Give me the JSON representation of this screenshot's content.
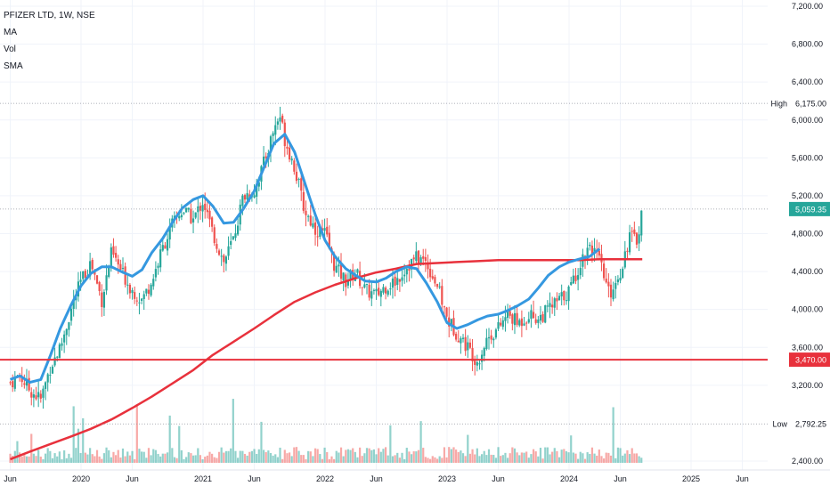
{
  "legend": {
    "title": "PFIZER LTD, 1W, NSE",
    "items": [
      "MA",
      "Vol",
      "SMA"
    ]
  },
  "colors": {
    "up": "#26a69a",
    "down": "#ef5350",
    "ma_line": "#3598e0",
    "sma_line": "#e8313c",
    "support": "#e8313c",
    "last_price_tag": "#26a69a",
    "support_tag": "#e8313c",
    "grid": "#f0f3fa",
    "dotted": "#9598a1"
  },
  "chart_data": {
    "type": "candlestick",
    "title": "PFIZER LTD, 1W, NSE",
    "y_axis": {
      "min": 2400,
      "max": 7200,
      "ticks": [
        {
          "value": 7200,
          "label": "7,200.00"
        },
        {
          "value": 6800,
          "label": "6,800.00"
        },
        {
          "value": 6400,
          "label": "6,400.00"
        },
        {
          "value": 6000,
          "label": "6,000.00"
        },
        {
          "value": 5600,
          "label": "5,600.00"
        },
        {
          "value": 5200,
          "label": "5,200.00"
        },
        {
          "value": 4800,
          "label": "4,800.00"
        },
        {
          "value": 4400,
          "label": "4,400.00"
        },
        {
          "value": 4000,
          "label": "4,000.00"
        },
        {
          "value": 3600,
          "label": "3,600.00"
        },
        {
          "value": 3200,
          "label": "3,200.00"
        },
        {
          "value": 2400,
          "label": "2,400.00"
        }
      ]
    },
    "x_axis": {
      "ticks": [
        {
          "t": 2019.42,
          "label": "Jun"
        },
        {
          "t": 2020.0,
          "label": "2020"
        },
        {
          "t": 2020.42,
          "label": "Jun"
        },
        {
          "t": 2021.0,
          "label": "2021"
        },
        {
          "t": 2021.42,
          "label": "Jun"
        },
        {
          "t": 2022.0,
          "label": "2022"
        },
        {
          "t": 2022.42,
          "label": "Jun"
        },
        {
          "t": 2023.0,
          "label": "2023"
        },
        {
          "t": 2023.42,
          "label": "Jun"
        },
        {
          "t": 2024.0,
          "label": "2024"
        },
        {
          "t": 2024.42,
          "label": "Jun"
        },
        {
          "t": 2025.0,
          "label": "2025"
        },
        {
          "t": 2025.42,
          "label": "Jun"
        }
      ]
    },
    "high": {
      "label": "High",
      "value": 6175,
      "value_label": "6,175.00"
    },
    "low": {
      "label": "Low",
      "value": 2792.25,
      "value_label": "2,792.25"
    },
    "last_price": {
      "value": 5059.35,
      "label": "5,059.35"
    },
    "support": {
      "value": 3470,
      "label": "3,470.00"
    },
    "price_path": [
      [
        2019.42,
        3230
      ],
      [
        2019.5,
        3300
      ],
      [
        2019.58,
        3150
      ],
      [
        2019.67,
        3050
      ],
      [
        2019.75,
        3400
      ],
      [
        2019.83,
        3600
      ],
      [
        2019.92,
        4000
      ],
      [
        2020.0,
        4300
      ],
      [
        2020.08,
        4500
      ],
      [
        2020.17,
        4100
      ],
      [
        2020.25,
        4600
      ],
      [
        2020.33,
        4400
      ],
      [
        2020.42,
        4200
      ],
      [
        2020.5,
        4100
      ],
      [
        2020.58,
        4300
      ],
      [
        2020.67,
        4650
      ],
      [
        2020.75,
        4900
      ],
      [
        2020.83,
        5050
      ],
      [
        2020.92,
        4950
      ],
      [
        2021.0,
        5150
      ],
      [
        2021.08,
        4800
      ],
      [
        2021.17,
        4500
      ],
      [
        2021.25,
        4750
      ],
      [
        2021.33,
        5200
      ],
      [
        2021.42,
        5250
      ],
      [
        2021.5,
        5550
      ],
      [
        2021.58,
        5900
      ],
      [
        2021.63,
        6050
      ],
      [
        2021.67,
        5800
      ],
      [
        2021.75,
        5500
      ],
      [
        2021.83,
        5050
      ],
      [
        2021.92,
        4850
      ],
      [
        2022.0,
        4800
      ],
      [
        2022.08,
        4450
      ],
      [
        2022.17,
        4300
      ],
      [
        2022.25,
        4400
      ],
      [
        2022.33,
        4200
      ],
      [
        2022.42,
        4150
      ],
      [
        2022.5,
        4250
      ],
      [
        2022.58,
        4300
      ],
      [
        2022.67,
        4450
      ],
      [
        2022.75,
        4550
      ],
      [
        2022.83,
        4500
      ],
      [
        2022.92,
        4250
      ],
      [
        2023.0,
        3900
      ],
      [
        2023.08,
        3750
      ],
      [
        2023.17,
        3600
      ],
      [
        2023.25,
        3450
      ],
      [
        2023.33,
        3700
      ],
      [
        2023.42,
        3800
      ],
      [
        2023.5,
        3950
      ],
      [
        2023.58,
        3850
      ],
      [
        2023.67,
        3950
      ],
      [
        2023.75,
        3900
      ],
      [
        2023.83,
        4000
      ],
      [
        2023.92,
        4100
      ],
      [
        2024.0,
        4200
      ],
      [
        2024.08,
        4450
      ],
      [
        2024.17,
        4700
      ],
      [
        2024.25,
        4500
      ],
      [
        2024.33,
        4150
      ],
      [
        2024.42,
        4400
      ],
      [
        2024.5,
        4800
      ],
      [
        2024.55,
        4700
      ],
      [
        2024.6,
        5059.35
      ]
    ],
    "ma_line": [
      [
        2019.42,
        3260
      ],
      [
        2019.5,
        3300
      ],
      [
        2019.58,
        3230
      ],
      [
        2019.67,
        3260
      ],
      [
        2019.75,
        3520
      ],
      [
        2019.83,
        3800
      ],
      [
        2019.92,
        4050
      ],
      [
        2020.0,
        4250
      ],
      [
        2020.08,
        4380
      ],
      [
        2020.17,
        4450
      ],
      [
        2020.25,
        4450
      ],
      [
        2020.33,
        4400
      ],
      [
        2020.42,
        4350
      ],
      [
        2020.5,
        4420
      ],
      [
        2020.58,
        4600
      ],
      [
        2020.67,
        4750
      ],
      [
        2020.75,
        4920
      ],
      [
        2020.83,
        5070
      ],
      [
        2020.92,
        5160
      ],
      [
        2021.0,
        5200
      ],
      [
        2021.08,
        5090
      ],
      [
        2021.17,
        4910
      ],
      [
        2021.25,
        4920
      ],
      [
        2021.33,
        5060
      ],
      [
        2021.42,
        5250
      ],
      [
        2021.5,
        5500
      ],
      [
        2021.58,
        5750
      ],
      [
        2021.67,
        5850
      ],
      [
        2021.75,
        5660
      ],
      [
        2021.83,
        5350
      ],
      [
        2021.92,
        5000
      ],
      [
        2022.0,
        4730
      ],
      [
        2022.08,
        4560
      ],
      [
        2022.17,
        4430
      ],
      [
        2022.25,
        4360
      ],
      [
        2022.33,
        4300
      ],
      [
        2022.42,
        4290
      ],
      [
        2022.5,
        4330
      ],
      [
        2022.58,
        4400
      ],
      [
        2022.67,
        4450
      ],
      [
        2022.75,
        4430
      ],
      [
        2022.83,
        4280
      ],
      [
        2022.92,
        4080
      ],
      [
        2023.0,
        3860
      ],
      [
        2023.08,
        3800
      ],
      [
        2023.17,
        3840
      ],
      [
        2023.25,
        3890
      ],
      [
        2023.33,
        3930
      ],
      [
        2023.42,
        3950
      ],
      [
        2023.5,
        3990
      ],
      [
        2023.58,
        4040
      ],
      [
        2023.67,
        4110
      ],
      [
        2023.75,
        4230
      ],
      [
        2023.83,
        4360
      ],
      [
        2023.92,
        4450
      ],
      [
        2024.0,
        4500
      ],
      [
        2024.08,
        4530
      ],
      [
        2024.17,
        4560
      ],
      [
        2024.25,
        4640
      ]
    ],
    "sma_line": [
      [
        2019.42,
        2420
      ],
      [
        2019.58,
        2500
      ],
      [
        2019.75,
        2580
      ],
      [
        2019.92,
        2660
      ],
      [
        2020.08,
        2740
      ],
      [
        2020.25,
        2840
      ],
      [
        2020.42,
        2960
      ],
      [
        2020.58,
        3080
      ],
      [
        2020.75,
        3220
      ],
      [
        2020.92,
        3360
      ],
      [
        2021.08,
        3520
      ],
      [
        2021.25,
        3660
      ],
      [
        2021.42,
        3800
      ],
      [
        2021.58,
        3940
      ],
      [
        2021.75,
        4080
      ],
      [
        2021.92,
        4180
      ],
      [
        2022.08,
        4260
      ],
      [
        2022.25,
        4330
      ],
      [
        2022.42,
        4390
      ],
      [
        2022.58,
        4430
      ],
      [
        2022.75,
        4480
      ],
      [
        2022.92,
        4490
      ],
      [
        2023.08,
        4500
      ],
      [
        2023.25,
        4510
      ],
      [
        2023.42,
        4520
      ],
      [
        2023.58,
        4520
      ],
      [
        2023.75,
        4520
      ],
      [
        2023.92,
        4520
      ],
      [
        2024.08,
        4520
      ],
      [
        2024.25,
        4530
      ],
      [
        2024.42,
        4530
      ],
      [
        2024.6,
        4530
      ]
    ]
  }
}
